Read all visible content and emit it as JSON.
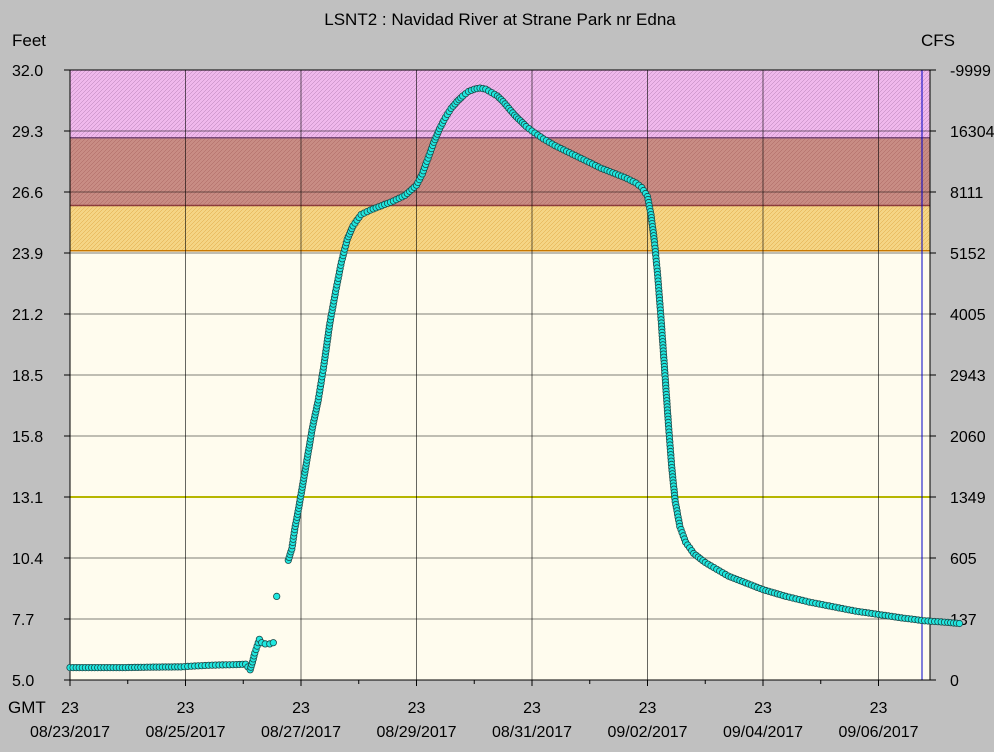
{
  "chart_data": {
    "type": "scatter",
    "title": "LSNT2  :  Navidad River at Strane Park nr Edna",
    "ylabel": "Feet",
    "y2label": "CFS",
    "xlabel": "GMT",
    "ylim": [
      5.0,
      32.0
    ],
    "y_ticks": [
      "5.0",
      "7.7",
      "10.4",
      "13.1",
      "15.8",
      "18.5",
      "21.2",
      "23.9",
      "26.6",
      "29.3",
      "32.0"
    ],
    "y2_ticks": [
      "0",
      "137",
      "605",
      "1349",
      "2060",
      "2943",
      "4005",
      "5152",
      "8111",
      "16304",
      "-9999"
    ],
    "x_ticks": [
      {
        "hour": "23",
        "date": "08/23/2017"
      },
      {
        "hour": "23",
        "date": "08/25/2017"
      },
      {
        "hour": "23",
        "date": "08/27/2017"
      },
      {
        "hour": "23",
        "date": "08/29/2017"
      },
      {
        "hour": "23",
        "date": "08/31/2017"
      },
      {
        "hour": "23",
        "date": "09/02/2017"
      },
      {
        "hour": "23",
        "date": "09/04/2017"
      },
      {
        "hour": "23",
        "date": "09/06/2017"
      }
    ],
    "x_minor_hours": [
      "23",
      "23",
      "23",
      "23",
      "23",
      "23",
      "23",
      "23"
    ],
    "flood_bands": [
      {
        "from": 24.0,
        "to": 26.0,
        "color": "#f5d585",
        "edge": "#c87800"
      },
      {
        "from": 26.0,
        "to": 29.0,
        "color": "#c88c84",
        "edge": "#8c3c3c"
      },
      {
        "from": 29.0,
        "to": 32.0,
        "color": "#f0b8ec",
        "edge": "#7a4a7a"
      }
    ],
    "action_line": {
      "value": 13.1,
      "color": "#f2f200"
    },
    "plot_background": "#fffcee",
    "marker_color": "#20e8e0",
    "grid": true,
    "series": [
      {
        "points": [
          [
            0.0,
            5.55
          ],
          [
            0.24,
            5.55
          ],
          [
            0.48,
            5.55
          ],
          [
            0.72,
            5.57
          ],
          [
            0.96,
            5.58
          ],
          [
            1.08,
            5.62
          ],
          [
            1.2,
            5.65
          ],
          [
            1.32,
            5.67
          ],
          [
            1.44,
            5.68
          ],
          [
            1.52,
            5.7
          ],
          [
            1.56,
            5.45
          ],
          [
            1.58,
            5.8
          ],
          [
            1.6,
            6.2
          ],
          [
            1.62,
            6.5
          ],
          [
            1.64,
            6.8
          ],
          [
            1.66,
            6.65
          ],
          [
            1.69,
            6.6
          ],
          [
            1.73,
            6.6
          ],
          [
            1.76,
            6.65
          ],
          [
            1.79,
            8.7
          ],
          [
            1.89,
            10.3
          ],
          [
            1.92,
            10.8
          ],
          [
            1.95,
            11.8
          ],
          [
            1.98,
            12.6
          ],
          [
            2.02,
            13.8
          ],
          [
            2.06,
            15.0
          ],
          [
            2.1,
            16.2
          ],
          [
            2.15,
            17.4
          ],
          [
            2.2,
            19.0
          ],
          [
            2.25,
            20.8
          ],
          [
            2.3,
            22.2
          ],
          [
            2.35,
            23.5
          ],
          [
            2.4,
            24.5
          ],
          [
            2.45,
            25.1
          ],
          [
            2.52,
            25.6
          ],
          [
            2.6,
            25.8
          ],
          [
            2.7,
            26.0
          ],
          [
            2.8,
            26.2
          ],
          [
            2.9,
            26.45
          ],
          [
            3.0,
            26.9
          ],
          [
            3.05,
            27.4
          ],
          [
            3.1,
            28.1
          ],
          [
            3.15,
            28.8
          ],
          [
            3.2,
            29.4
          ],
          [
            3.25,
            29.9
          ],
          [
            3.3,
            30.3
          ],
          [
            3.35,
            30.6
          ],
          [
            3.4,
            30.85
          ],
          [
            3.45,
            31.05
          ],
          [
            3.5,
            31.15
          ],
          [
            3.55,
            31.2
          ],
          [
            3.6,
            31.15
          ],
          [
            3.65,
            31.0
          ],
          [
            3.7,
            30.85
          ],
          [
            3.75,
            30.6
          ],
          [
            3.8,
            30.3
          ],
          [
            3.85,
            30.0
          ],
          [
            3.9,
            29.75
          ],
          [
            3.95,
            29.5
          ],
          [
            4.0,
            29.3
          ],
          [
            4.1,
            28.95
          ],
          [
            4.2,
            28.65
          ],
          [
            4.3,
            28.4
          ],
          [
            4.4,
            28.15
          ],
          [
            4.5,
            27.9
          ],
          [
            4.6,
            27.65
          ],
          [
            4.7,
            27.45
          ],
          [
            4.8,
            27.25
          ],
          [
            4.9,
            27.0
          ],
          [
            4.95,
            26.8
          ],
          [
            5.0,
            26.4
          ],
          [
            5.03,
            25.6
          ],
          [
            5.06,
            24.4
          ],
          [
            5.09,
            22.8
          ],
          [
            5.12,
            20.8
          ],
          [
            5.15,
            18.6
          ],
          [
            5.18,
            16.4
          ],
          [
            5.21,
            14.4
          ],
          [
            5.24,
            12.9
          ],
          [
            5.28,
            11.8
          ],
          [
            5.33,
            11.1
          ],
          [
            5.4,
            10.6
          ],
          [
            5.5,
            10.2
          ],
          [
            5.6,
            9.9
          ],
          [
            5.7,
            9.6
          ],
          [
            5.8,
            9.4
          ],
          [
            5.9,
            9.2
          ],
          [
            6.0,
            9.0
          ],
          [
            6.2,
            8.7
          ],
          [
            6.4,
            8.45
          ],
          [
            6.6,
            8.25
          ],
          [
            6.8,
            8.05
          ],
          [
            7.0,
            7.9
          ],
          [
            7.2,
            7.75
          ],
          [
            7.4,
            7.62
          ],
          [
            7.6,
            7.55
          ],
          [
            7.7,
            7.5
          ]
        ]
      }
    ]
  }
}
